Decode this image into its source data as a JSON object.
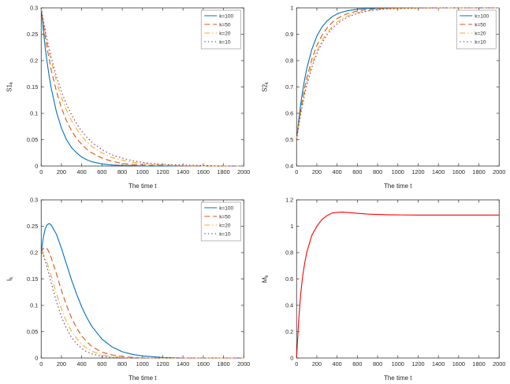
{
  "figure": {
    "background": "#ffffff",
    "axes_color": "#333333",
    "tick_label_color": "#262626"
  },
  "chart_data": [
    {
      "id": "s1",
      "type": "line",
      "title": "",
      "xlabel": "The time t",
      "ylabel": "S1",
      "ylabel_sub": "k",
      "xlim": [
        0,
        2000
      ],
      "ylim": [
        0,
        0.3
      ],
      "xticks": [
        0,
        200,
        400,
        600,
        800,
        1000,
        1200,
        1400,
        1600,
        1800,
        2000
      ],
      "yticks": [
        0,
        0.05,
        0.1,
        0.15,
        0.2,
        0.25,
        0.3
      ],
      "grid": false,
      "legend": true,
      "legend_position": "top-right",
      "x": [
        0,
        20,
        40,
        60,
        80,
        100,
        150,
        200,
        250,
        300,
        350,
        400,
        450,
        500,
        600,
        700,
        800,
        900,
        1000,
        1200,
        1400,
        1600,
        1800,
        2000
      ],
      "series": [
        {
          "name": "k=100",
          "color": "#0072bd",
          "style": "solid",
          "values": [
            0.3,
            0.26,
            0.225,
            0.195,
            0.169,
            0.147,
            0.103,
            0.072,
            0.05,
            0.035,
            0.025,
            0.017,
            0.012,
            0.008,
            0.004,
            0.002,
            0.001,
            0.001,
            0,
            0,
            0,
            0,
            0,
            0
          ]
        },
        {
          "name": "k=50",
          "color": "#d95319",
          "style": "dashed",
          "values": [
            0.3,
            0.271,
            0.246,
            0.222,
            0.201,
            0.182,
            0.142,
            0.11,
            0.086,
            0.067,
            0.052,
            0.041,
            0.032,
            0.025,
            0.015,
            0.009,
            0.005,
            0.003,
            0.002,
            0.001,
            0,
            0,
            0,
            0
          ]
        },
        {
          "name": "k=20",
          "color": "#edb120",
          "style": "dashdot",
          "values": [
            0.3,
            0.276,
            0.254,
            0.234,
            0.215,
            0.198,
            0.161,
            0.13,
            0.106,
            0.086,
            0.07,
            0.057,
            0.046,
            0.037,
            0.025,
            0.016,
            0.011,
            0.007,
            0.005,
            0.002,
            0.001,
            0,
            0,
            0
          ]
        },
        {
          "name": "k=10",
          "color": "#7e2f8e",
          "style": "dotted",
          "values": [
            0.3,
            0.278,
            0.258,
            0.239,
            0.222,
            0.206,
            0.17,
            0.141,
            0.117,
            0.097,
            0.08,
            0.066,
            0.055,
            0.045,
            0.031,
            0.021,
            0.015,
            0.01,
            0.007,
            0.003,
            0.002,
            0.001,
            0,
            0
          ]
        }
      ]
    },
    {
      "id": "s2",
      "type": "line",
      "title": "",
      "xlabel": "The time t",
      "ylabel": "S2",
      "ylabel_sub": "k",
      "xlim": [
        0,
        2000
      ],
      "ylim": [
        0.4,
        1
      ],
      "xticks": [
        0,
        200,
        400,
        600,
        800,
        1000,
        1200,
        1400,
        1600,
        1800,
        2000
      ],
      "yticks": [
        0.4,
        0.5,
        0.6,
        0.7,
        0.8,
        0.9,
        1
      ],
      "grid": false,
      "legend": true,
      "legend_position": "top-right",
      "x": [
        0,
        20,
        40,
        60,
        80,
        100,
        150,
        200,
        250,
        300,
        350,
        400,
        450,
        500,
        600,
        700,
        800,
        900,
        1000,
        1200,
        1400,
        1600,
        1800,
        2000
      ],
      "series": [
        {
          "name": "k=100",
          "color": "#0072bd",
          "style": "solid",
          "values": [
            0.5,
            0.571,
            0.632,
            0.685,
            0.73,
            0.768,
            0.842,
            0.893,
            0.927,
            0.95,
            0.966,
            0.977,
            0.984,
            0.989,
            0.995,
            0.998,
            0.999,
            0.999,
            1,
            1,
            1,
            1,
            1,
            1
          ]
        },
        {
          "name": "k=50",
          "color": "#d95319",
          "style": "dashed",
          "values": [
            0.5,
            0.559,
            0.611,
            0.656,
            0.697,
            0.732,
            0.804,
            0.857,
            0.895,
            0.923,
            0.944,
            0.959,
            0.97,
            0.978,
            0.988,
            0.994,
            0.997,
            0.998,
            0.999,
            1,
            1,
            1,
            1,
            1
          ]
        },
        {
          "name": "k=20",
          "color": "#edb120",
          "style": "dashdot",
          "values": [
            0.5,
            0.553,
            0.6,
            0.642,
            0.679,
            0.713,
            0.785,
            0.835,
            0.874,
            0.906,
            0.928,
            0.946,
            0.959,
            0.969,
            0.982,
            0.99,
            0.994,
            0.997,
            0.998,
            0.999,
            1,
            1,
            1,
            1
          ]
        },
        {
          "name": "k=10",
          "color": "#7e2f8e",
          "style": "dotted",
          "values": [
            0.5,
            0.55,
            0.595,
            0.635,
            0.672,
            0.705,
            0.773,
            0.826,
            0.866,
            0.897,
            0.921,
            0.939,
            0.953,
            0.964,
            0.979,
            0.988,
            0.993,
            0.996,
            0.997,
            0.999,
            1,
            1,
            1,
            1
          ]
        }
      ]
    },
    {
      "id": "i",
      "type": "line",
      "title": "",
      "xlabel": "The time t",
      "ylabel": "I",
      "ylabel_sub": "k",
      "xlim": [
        0,
        2000
      ],
      "ylim": [
        0,
        0.3
      ],
      "xticks": [
        0,
        200,
        400,
        600,
        800,
        1000,
        1200,
        1400,
        1600,
        1800,
        2000
      ],
      "yticks": [
        0,
        0.05,
        0.1,
        0.15,
        0.2,
        0.25,
        0.3
      ],
      "grid": false,
      "legend": true,
      "legend_position": "top-right",
      "x": [
        0,
        20,
        40,
        60,
        80,
        100,
        150,
        200,
        250,
        300,
        350,
        400,
        450,
        500,
        600,
        700,
        800,
        900,
        1000,
        1200,
        1400,
        1600,
        1800,
        2000
      ],
      "series": [
        {
          "name": "k=100",
          "color": "#0072bd",
          "style": "solid",
          "values": [
            0.2,
            0.228,
            0.245,
            0.253,
            0.255,
            0.252,
            0.235,
            0.208,
            0.178,
            0.148,
            0.121,
            0.097,
            0.077,
            0.06,
            0.036,
            0.021,
            0.012,
            0.007,
            0.004,
            0.001,
            0,
            0,
            0,
            0
          ]
        },
        {
          "name": "k=50",
          "color": "#d95319",
          "style": "dashed",
          "values": [
            0.2,
            0.208,
            0.21,
            0.207,
            0.2,
            0.19,
            0.16,
            0.128,
            0.1,
            0.076,
            0.057,
            0.042,
            0.031,
            0.022,
            0.011,
            0.006,
            0.003,
            0.001,
            0,
            0,
            0,
            0,
            0,
            0
          ]
        },
        {
          "name": "k=20",
          "color": "#edb120",
          "style": "dashdot",
          "values": [
            0.2,
            0.197,
            0.19,
            0.18,
            0.168,
            0.155,
            0.122,
            0.093,
            0.069,
            0.051,
            0.037,
            0.026,
            0.019,
            0.013,
            0.006,
            0.003,
            0.001,
            0,
            0,
            0,
            0,
            0,
            0,
            0
          ]
        },
        {
          "name": "k=10",
          "color": "#7e2f8e",
          "style": "dotted",
          "values": [
            0.2,
            0.194,
            0.184,
            0.171,
            0.157,
            0.142,
            0.107,
            0.078,
            0.056,
            0.039,
            0.027,
            0.018,
            0.012,
            0.008,
            0.003,
            0.001,
            0,
            0,
            0,
            0,
            0,
            0,
            0,
            0
          ]
        }
      ]
    },
    {
      "id": "m",
      "type": "line",
      "title": "",
      "xlabel": "The time t",
      "ylabel": "M",
      "ylabel_sub": "k",
      "xlim": [
        0,
        2000
      ],
      "ylim": [
        0,
        1.2
      ],
      "xticks": [
        0,
        200,
        400,
        600,
        800,
        1000,
        1200,
        1400,
        1600,
        1800,
        2000
      ],
      "yticks": [
        0,
        0.2,
        0.4,
        0.6,
        0.8,
        1,
        1.2
      ],
      "grid": false,
      "legend": false,
      "x": [
        0,
        20,
        40,
        60,
        80,
        100,
        150,
        200,
        250,
        300,
        350,
        400,
        450,
        500,
        600,
        700,
        800,
        900,
        1000,
        1200,
        1400,
        1600,
        1800,
        2000
      ],
      "series": [
        {
          "name": "M",
          "color": "#ff0000",
          "style": "solid",
          "values": [
            0,
            0.28,
            0.48,
            0.62,
            0.72,
            0.8,
            0.93,
            1,
            1.05,
            1.08,
            1.1,
            1.105,
            1.107,
            1.105,
            1.098,
            1.092,
            1.089,
            1.087,
            1.086,
            1.085,
            1.085,
            1.085,
            1.085,
            1.085
          ]
        }
      ]
    }
  ]
}
